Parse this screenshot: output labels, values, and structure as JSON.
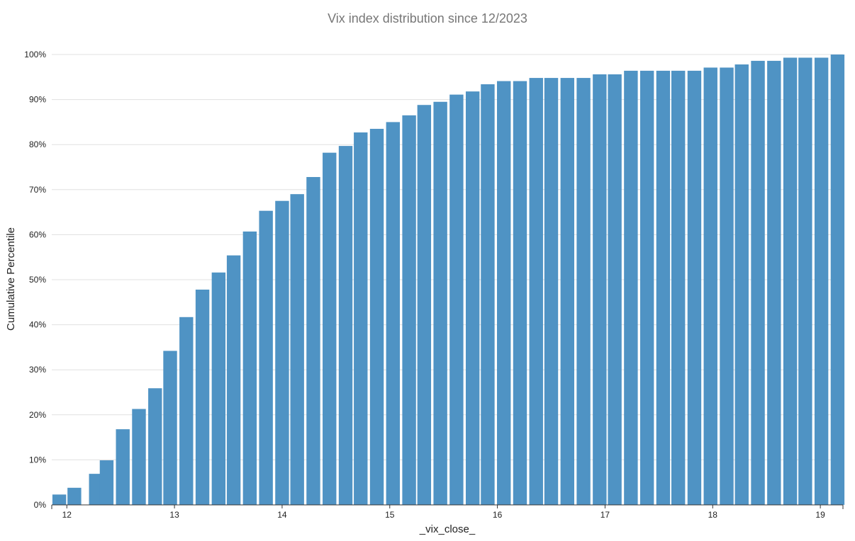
{
  "colors": {
    "bar": "#4f93c4",
    "grid": "#e0e0e0",
    "title": "#777777",
    "axis": "#333333"
  },
  "chart_data": {
    "type": "bar",
    "title": "Vix index distribution since 12/2023",
    "xlabel": "_vix_close_",
    "ylabel": "Cumulative Percentile",
    "x_ticks": [
      12,
      13,
      14,
      15,
      16,
      17,
      18,
      19
    ],
    "xlim": [
      11.86,
      19.21
    ],
    "y_ticks": [
      "0%",
      "10%",
      "20%",
      "30%",
      "40%",
      "50%",
      "60%",
      "70%",
      "80%",
      "90%",
      "100%"
    ],
    "ylim": [
      0,
      100
    ],
    "grid": true,
    "legend": "none",
    "x": [
      11.93,
      12.07,
      12.27,
      12.37,
      12.52,
      12.67,
      12.82,
      12.96,
      13.11,
      13.26,
      13.41,
      13.55,
      13.7,
      13.85,
      14.0,
      14.14,
      14.29,
      14.44,
      14.59,
      14.73,
      14.88,
      15.03,
      15.18,
      15.32,
      15.47,
      15.62,
      15.77,
      15.91,
      16.06,
      16.21,
      16.36,
      16.5,
      16.65,
      16.8,
      16.95,
      17.09,
      17.24,
      17.39,
      17.54,
      17.68,
      17.83,
      17.98,
      18.13,
      18.27,
      18.42,
      18.57,
      18.72,
      18.86,
      19.01,
      19.16
    ],
    "values": [
      2.3,
      3.8,
      6.9,
      9.9,
      16.8,
      21.3,
      25.9,
      34.2,
      41.7,
      47.8,
      51.6,
      55.4,
      60.7,
      65.3,
      67.5,
      69.0,
      72.8,
      78.2,
      79.7,
      82.7,
      83.5,
      85.0,
      86.5,
      88.8,
      89.5,
      91.1,
      91.8,
      93.4,
      94.1,
      94.1,
      94.8,
      94.8,
      94.8,
      94.8,
      95.6,
      95.6,
      96.4,
      96.4,
      96.4,
      96.4,
      96.4,
      97.1,
      97.1,
      97.8,
      98.6,
      98.6,
      99.3,
      99.3,
      99.3,
      100.0
    ]
  }
}
